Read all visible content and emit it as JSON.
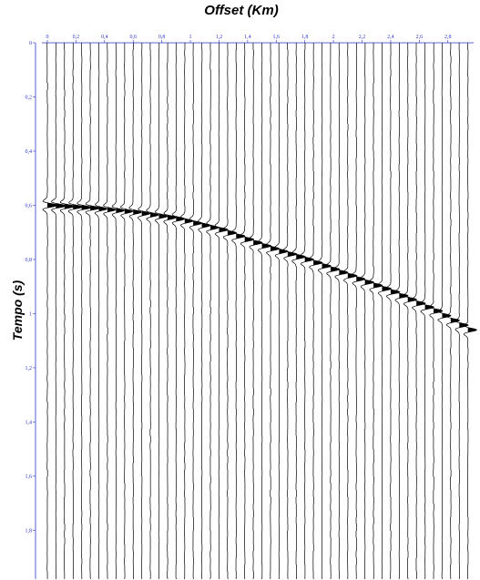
{
  "chart_data": {
    "type": "line",
    "subtype": "seismic-wiggle-section",
    "title": "Offset (Km)",
    "xlabel": "Offset (Km)",
    "ylabel": "Tempo (s)",
    "x_ticks": [
      "0",
      "0,2",
      "0,4",
      "0,6",
      "0,8",
      "1",
      "1,2",
      "1,4",
      "1,6",
      "1,8",
      "2",
      "2,2",
      "2,4",
      "2,6",
      "2,8"
    ],
    "y_ticks": [
      "0",
      "0,2",
      "0,4",
      "0,6",
      "0,8",
      "1",
      "1,2",
      "1,4",
      "1,6",
      "1,8"
    ],
    "xlim": [
      0,
      2.98
    ],
    "ylim": [
      0,
      1.98
    ],
    "y_inverted": true,
    "trace_count": 50,
    "trace_spacing_km": 0.06,
    "grid": false,
    "axis_color": "#2a35c9",
    "trace_color": "#000000",
    "series": [
      {
        "type": "arrival-curve",
        "x": [
          0,
          0.3,
          0.6,
          0.9,
          1.2,
          1.5,
          1.8,
          2.1,
          2.4,
          2.7,
          2.94
        ],
        "y": [
          0.6,
          0.61,
          0.625,
          0.65,
          0.69,
          0.75,
          0.8,
          0.86,
          0.92,
          0.99,
          1.06
        ]
      }
    ]
  }
}
